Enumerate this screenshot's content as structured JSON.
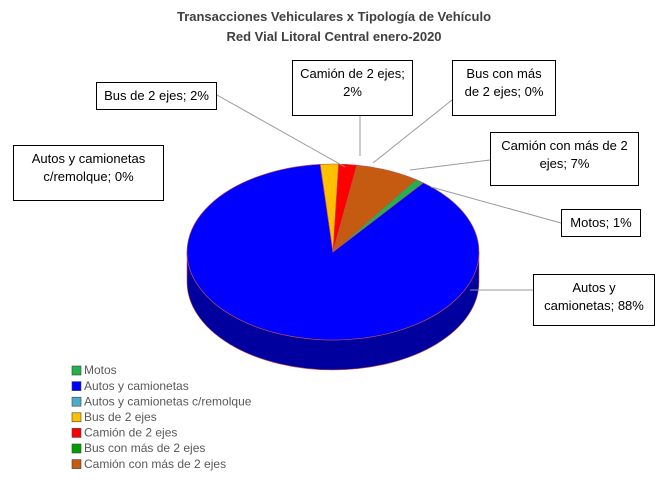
{
  "chart_data": {
    "type": "pie",
    "title": "Transacciones Vehiculares x Tipología de Vehículo",
    "subtitle": "Red Vial Litoral Central enero-2020",
    "categories": [
      "Motos",
      "Autos y camionetas",
      "Autos y camionetas c/remolque",
      "Bus de 2 ejes",
      "Camión de 2 ejes",
      "Bus con más de 2 ejes",
      "Camión con más de 2 ejes"
    ],
    "values": [
      1,
      88,
      0,
      2,
      2,
      0,
      7
    ],
    "value_labels": [
      "Motos; 1%",
      "Autos y camionetas; 88%",
      "Autos y camionetas c/remolque; 0%",
      "Bus de 2 ejes; 2%",
      "Camión de 2 ejes; 2%",
      "Bus con más de 2 ejes; 0%",
      "Camión con más de 2 ejes; 7%"
    ],
    "colors": [
      "#22b14c",
      "#0000ff",
      "#4bacc6",
      "#ffc000",
      "#ff0000",
      "#00a000",
      "#c55a11"
    ],
    "legend": "bottom-left"
  }
}
